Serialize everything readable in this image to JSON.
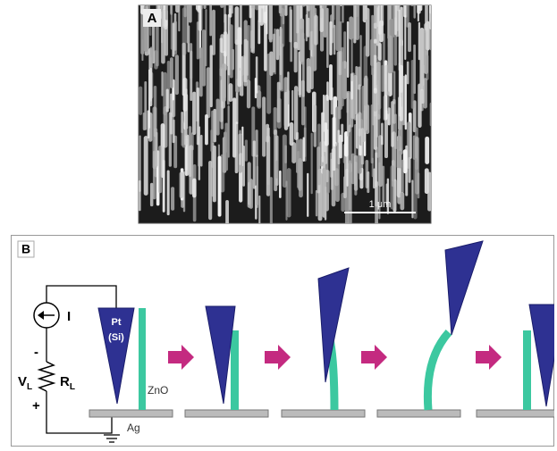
{
  "panel_a": {
    "label": "A",
    "scale_bar": "1 μm"
  },
  "panel_b": {
    "label": "B",
    "circuit": {
      "current": "I",
      "minus": "-",
      "plus": "+",
      "voltage": "V",
      "voltage_sub": "L",
      "resistor": "R",
      "resistor_sub": "L"
    },
    "tip": [
      "Pt",
      "(Si)"
    ],
    "nanowire": "ZnO",
    "electrode": "Ag"
  }
}
